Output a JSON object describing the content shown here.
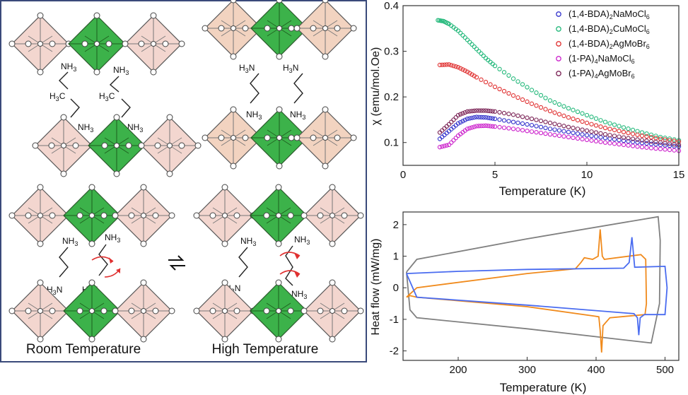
{
  "schematic": {
    "left_caption": "Room Temperature",
    "right_caption": "High Temperature",
    "labels": {
      "nh3": "NH",
      "h3n": "H",
      "h3c": "H",
      "c": "C",
      "sub3": "3",
      "n": "N"
    },
    "colors": {
      "frame": "#3a4a7a",
      "center_octahedron": "#3cb24a",
      "side_octahedron_top": "#f3d6cf",
      "side_octahedron_tr": "#f2d3c0",
      "arrow": "#e03030"
    }
  },
  "chart_data": [
    {
      "type": "scatter",
      "xlabel": "Temperature (K)",
      "ylabel": "χ (emu/mol.Oe)",
      "xlim": [
        0,
        15
      ],
      "ylim": [
        0.05,
        0.4
      ],
      "xticks": [
        "0",
        "5",
        "10",
        "15"
      ],
      "yticks": [
        "0.1",
        "0.2",
        "0.3",
        "0.4"
      ],
      "legend_position": "top-right",
      "series": [
        {
          "name": "(1,4-BDA)2NaMoCl6",
          "legend": {
            "base": "(1,4-BDA)",
            "s1": "2",
            "mid": "NaMoCl",
            "s2": "6"
          },
          "color": "#3333cc",
          "x": [
            2,
            2.5,
            3,
            3.5,
            4,
            4.5,
            5,
            6,
            7,
            8,
            9,
            10,
            11,
            12,
            13,
            14,
            15
          ],
          "y": [
            0.108,
            0.125,
            0.142,
            0.152,
            0.156,
            0.155,
            0.152,
            0.145,
            0.138,
            0.13,
            0.123,
            0.116,
            0.11,
            0.104,
            0.099,
            0.095,
            0.091
          ]
        },
        {
          "name": "(1,4-BDA)2CuMoCl6",
          "legend": {
            "base": "(1,4-BDA)",
            "s1": "2",
            "mid": "CuMoCl",
            "s2": "6"
          },
          "color": "#22b87a",
          "x": [
            1.9,
            2.2,
            2.5,
            3,
            3.5,
            4,
            4.5,
            5,
            6,
            7,
            8,
            9,
            10,
            11,
            12,
            13,
            14,
            15
          ],
          "y": [
            0.368,
            0.366,
            0.36,
            0.345,
            0.325,
            0.305,
            0.285,
            0.268,
            0.24,
            0.215,
            0.192,
            0.175,
            0.16,
            0.145,
            0.133,
            0.122,
            0.112,
            0.105
          ]
        },
        {
          "name": "(1,4-BDA)2AgMoBr6",
          "legend": {
            "base": "(1,4-BDA)",
            "s1": "2",
            "mid": "AgMoBr",
            "s2": "6"
          },
          "color": "#e03030",
          "x": [
            2,
            2.5,
            3,
            3.5,
            4,
            5,
            6,
            7,
            8,
            9,
            10,
            11,
            12,
            13,
            14,
            15
          ],
          "y": [
            0.27,
            0.271,
            0.265,
            0.255,
            0.243,
            0.222,
            0.203,
            0.185,
            0.169,
            0.155,
            0.143,
            0.132,
            0.123,
            0.115,
            0.108,
            0.102
          ]
        },
        {
          "name": "(1-PA)4NaMoCl6",
          "legend": {
            "base": "(1-PA)",
            "s1": "4",
            "mid": "NaMoCl",
            "s2": "6"
          },
          "color": "#cc22cc",
          "x": [
            2,
            2.5,
            3,
            3.5,
            4,
            4.5,
            5,
            6,
            7,
            8,
            9,
            10,
            11,
            12,
            13,
            14,
            15
          ],
          "y": [
            0.09,
            0.095,
            0.115,
            0.13,
            0.136,
            0.137,
            0.135,
            0.13,
            0.124,
            0.118,
            0.112,
            0.106,
            0.1,
            0.095,
            0.09,
            0.086,
            0.082
          ]
        },
        {
          "name": "(1-PA)4AgMoBr6",
          "legend": {
            "base": "(1-PA)",
            "s1": "4",
            "mid": "AgMoBr",
            "s2": "6"
          },
          "color": "#7a2255",
          "x": [
            2,
            2.5,
            3,
            3.5,
            4,
            4.5,
            5,
            6,
            7,
            8,
            9,
            10,
            11,
            12,
            13,
            14,
            15
          ],
          "y": [
            0.122,
            0.14,
            0.16,
            0.168,
            0.17,
            0.17,
            0.168,
            0.161,
            0.152,
            0.143,
            0.134,
            0.126,
            0.118,
            0.111,
            0.105,
            0.1,
            0.095
          ]
        }
      ]
    },
    {
      "type": "line",
      "xlabel": "Temperature (K)",
      "ylabel": "Heat flow (mW/mg)",
      "xlim": [
        120,
        520
      ],
      "ylim": [
        -2.3,
        2.4
      ],
      "xticks": [
        "200",
        "300",
        "400",
        "500"
      ],
      "yticks": [
        "-2",
        "-1",
        "0",
        "1",
        "2"
      ],
      "series": [
        {
          "color": "#808080",
          "x": [
            125,
            140,
            300,
            490,
            493,
            492,
            480,
            300,
            140,
            130,
            125
          ],
          "y": [
            0.5,
            0.9,
            1.55,
            2.25,
            1.5,
            -0.5,
            -1.75,
            -1.3,
            -0.95,
            -0.7,
            0.5
          ]
        },
        {
          "color": "#f08a1c",
          "x": [
            125,
            140,
            300,
            370,
            378,
            383,
            395,
            403,
            406,
            409,
            412,
            465,
            472,
            473,
            471,
            420,
            410,
            408,
            406,
            404,
            398,
            300,
            140,
            130,
            125
          ],
          "y": [
            -0.3,
            0.0,
            0.45,
            0.6,
            0.8,
            0.95,
            0.9,
            1.0,
            1.85,
            1.0,
            0.9,
            1.05,
            0.9,
            -0.5,
            -0.85,
            -0.95,
            -1.2,
            -2.05,
            -1.35,
            -0.92,
            -0.9,
            -0.6,
            -0.3,
            -0.25,
            -0.3
          ]
        },
        {
          "color": "#4a6cf0",
          "x": [
            125,
            200,
            300,
            440,
            448,
            452,
            456,
            500,
            503,
            500,
            470,
            464,
            462,
            460,
            455,
            300,
            140,
            125
          ],
          "y": [
            0.45,
            0.52,
            0.58,
            0.62,
            0.8,
            1.6,
            0.65,
            0.68,
            0.0,
            -0.85,
            -0.85,
            -0.95,
            -1.5,
            -0.95,
            -0.82,
            -0.55,
            -0.3,
            0.45
          ]
        }
      ]
    }
  ]
}
